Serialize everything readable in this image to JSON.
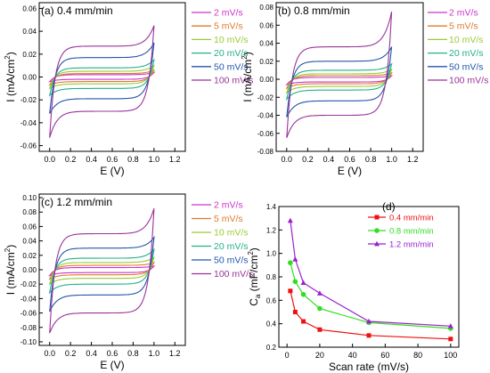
{
  "figure": {
    "charts": [
      {
        "panel_label": "(a) 0.4 mm/min",
        "legend_labels": [
          "2 mV/s",
          "5 mV/s",
          "10 mV/s",
          "20 mV/s",
          "50 mV/s",
          "100 mV/s"
        ],
        "xlabel": "E (V)",
        "ylabel_main": "I (mA/cm",
        "ylabel_sup": "2",
        "ylabel_tail": ")",
        "xticks": [
          "0.0",
          "0.2",
          "0.4",
          "0.6",
          "0.8",
          "1.0",
          "1.2"
        ],
        "yticks": [
          "-0.06",
          "-0.04",
          "-0.02",
          "0.00",
          "0.02",
          "0.04",
          "0.06"
        ]
      },
      {
        "panel_label": "(b) 0.8 mm/min",
        "legend_labels": [
          "2 mV/s",
          "5 mV/s",
          "10 mV/s",
          "20 mV/s",
          "50 mV/s",
          "100 mV/s"
        ],
        "xlabel": "E (V)",
        "ylabel_main": "I (mA/cm",
        "ylabel_sup": "2",
        "ylabel_tail": ")",
        "xticks": [
          "0.0",
          "0.2",
          "0.4",
          "0.6",
          "0.8",
          "1.0",
          "1.2"
        ],
        "yticks": [
          "-0.08",
          "-0.06",
          "-0.04",
          "-0.02",
          "0.00",
          "0.02",
          "0.04",
          "0.06",
          "0.08"
        ]
      },
      {
        "panel_label": "(c) 1.2 mm/min",
        "legend_labels": [
          "2 mV/s",
          "5 mV/s",
          "10 mV/s",
          "20 mV/s",
          "50 mV/s",
          "100 mV/s"
        ],
        "xlabel": "E (V)",
        "ylabel_main": "I (mA/cm",
        "ylabel_sup": "2",
        "ylabel_tail": ")",
        "xticks": [
          "0.0",
          "0.2",
          "0.4",
          "0.6",
          "0.8",
          "1.0",
          "1.2"
        ],
        "yticks": [
          "-0.10",
          "-0.08",
          "-0.06",
          "-0.04",
          "-0.02",
          "0.00",
          "0.02",
          "0.04",
          "0.06",
          "0.08",
          "0.10"
        ]
      },
      {
        "panel_label": "(d)",
        "legend_labels": [
          "0.4 mm/min",
          "0.8 mm/min",
          "1.2 mm/min"
        ],
        "xlabel": "Scan rate (mV/s)",
        "ylabel_main": "C",
        "ylabel_sub": "a",
        "ylabel_mid": " (mF/cm",
        "ylabel_sup": "2",
        "ylabel_tail": ")",
        "xticks": [
          "0",
          "20",
          "40",
          "60",
          "80",
          "100"
        ],
        "yticks": [
          "0.2",
          "0.4",
          "0.6",
          "0.8",
          "1.0",
          "1.2",
          "1.4"
        ]
      }
    ]
  },
  "chart_data": [
    {
      "type": "line",
      "curve_kind": "cyclic-voltammogram",
      "x_range": [
        -0.1,
        1.3
      ],
      "y_range": [
        -0.065,
        0.065
      ],
      "colors": [
        "#cc33cc",
        "#e07b2a",
        "#99cc33",
        "#22b08a",
        "#2255aa",
        "#993399"
      ],
      "series": [
        {
          "name": "2 mV/s",
          "scan_rate": 2,
          "upper_plateau": 0.002,
          "lower_plateau": -0.002,
          "anodic_end": 0.004,
          "cathodic_start": -0.004
        },
        {
          "name": "5 mV/s",
          "scan_rate": 5,
          "upper_plateau": 0.003,
          "lower_plateau": -0.004,
          "anodic_end": 0.006,
          "cathodic_start": -0.007
        },
        {
          "name": "10 mV/s",
          "scan_rate": 10,
          "upper_plateau": 0.005,
          "lower_plateau": -0.006,
          "anodic_end": 0.01,
          "cathodic_start": -0.01
        },
        {
          "name": "20 mV/s",
          "scan_rate": 20,
          "upper_plateau": 0.008,
          "lower_plateau": -0.01,
          "anodic_end": 0.015,
          "cathodic_start": -0.016
        },
        {
          "name": "50 mV/s",
          "scan_rate": 50,
          "upper_plateau": 0.017,
          "lower_plateau": -0.019,
          "anodic_end": 0.03,
          "cathodic_start": -0.032
        },
        {
          "name": "100 mV/s",
          "scan_rate": 100,
          "upper_plateau": 0.027,
          "lower_plateau": -0.03,
          "anodic_end": 0.045,
          "cathodic_start": -0.053
        }
      ]
    },
    {
      "type": "line",
      "curve_kind": "cyclic-voltammogram",
      "x_range": [
        -0.1,
        1.3
      ],
      "y_range": [
        -0.08,
        0.085
      ],
      "colors": [
        "#cc33cc",
        "#e07b2a",
        "#99cc33",
        "#22b08a",
        "#2255aa",
        "#993399"
      ],
      "series": [
        {
          "name": "2 mV/s",
          "scan_rate": 2,
          "upper_plateau": 0.002,
          "lower_plateau": -0.003,
          "anodic_end": 0.004,
          "cathodic_start": -0.006
        },
        {
          "name": "5 mV/s",
          "scan_rate": 5,
          "upper_plateau": 0.004,
          "lower_plateau": -0.005,
          "anodic_end": 0.007,
          "cathodic_start": -0.01
        },
        {
          "name": "10 mV/s",
          "scan_rate": 10,
          "upper_plateau": 0.006,
          "lower_plateau": -0.008,
          "anodic_end": 0.011,
          "cathodic_start": -0.015
        },
        {
          "name": "20 mV/s",
          "scan_rate": 20,
          "upper_plateau": 0.01,
          "lower_plateau": -0.012,
          "anodic_end": 0.017,
          "cathodic_start": -0.022
        },
        {
          "name": "50 mV/s",
          "scan_rate": 50,
          "upper_plateau": 0.02,
          "lower_plateau": -0.024,
          "anodic_end": 0.036,
          "cathodic_start": -0.042
        },
        {
          "name": "100 mV/s",
          "scan_rate": 100,
          "upper_plateau": 0.036,
          "lower_plateau": -0.04,
          "anodic_end": 0.075,
          "cathodic_start": -0.065
        }
      ]
    },
    {
      "type": "line",
      "curve_kind": "cyclic-voltammogram",
      "x_range": [
        -0.1,
        1.3
      ],
      "y_range": [
        -0.105,
        0.105
      ],
      "colors": [
        "#cc33cc",
        "#e07b2a",
        "#99cc33",
        "#22b08a",
        "#2255aa",
        "#993399"
      ],
      "series": [
        {
          "name": "2 mV/s",
          "scan_rate": 2,
          "upper_plateau": 0.003,
          "lower_plateau": -0.004,
          "anodic_end": 0.005,
          "cathodic_start": -0.008
        },
        {
          "name": "5 mV/s",
          "scan_rate": 5,
          "upper_plateau": 0.006,
          "lower_plateau": -0.007,
          "anodic_end": 0.01,
          "cathodic_start": -0.013
        },
        {
          "name": "10 mV/s",
          "scan_rate": 10,
          "upper_plateau": 0.01,
          "lower_plateau": -0.012,
          "anodic_end": 0.017,
          "cathodic_start": -0.02
        },
        {
          "name": "20 mV/s",
          "scan_rate": 20,
          "upper_plateau": 0.016,
          "lower_plateau": -0.02,
          "anodic_end": 0.028,
          "cathodic_start": -0.032
        },
        {
          "name": "50 mV/s",
          "scan_rate": 50,
          "upper_plateau": 0.03,
          "lower_plateau": -0.035,
          "anodic_end": 0.045,
          "cathodic_start": -0.058
        },
        {
          "name": "100 mV/s",
          "scan_rate": 100,
          "upper_plateau": 0.05,
          "lower_plateau": -0.06,
          "anodic_end": 0.085,
          "cathodic_start": -0.088
        }
      ]
    },
    {
      "type": "line",
      "x_range": [
        -5,
        105
      ],
      "y_range": [
        0.2,
        1.4
      ],
      "colors": [
        "#ee1111",
        "#33dd22",
        "#9922cc"
      ],
      "markers": [
        "square",
        "circle",
        "triangle"
      ],
      "x": [
        2,
        5,
        10,
        20,
        50,
        100
      ],
      "series": [
        {
          "name": "0.4 mm/min",
          "values": [
            0.68,
            0.5,
            0.42,
            0.35,
            0.3,
            0.27
          ]
        },
        {
          "name": "0.8 mm/min",
          "values": [
            0.92,
            0.76,
            0.65,
            0.53,
            0.41,
            0.36
          ]
        },
        {
          "name": "1.2 mm/min",
          "values": [
            1.28,
            0.95,
            0.75,
            0.66,
            0.42,
            0.38
          ]
        }
      ]
    }
  ]
}
